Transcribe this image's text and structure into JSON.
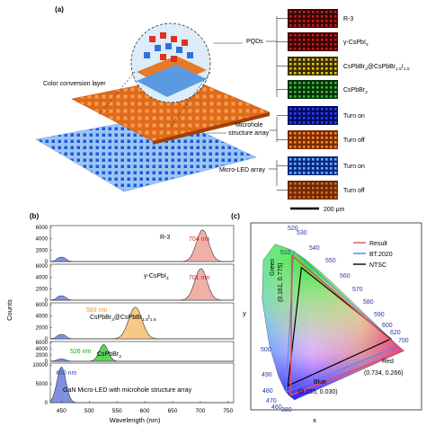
{
  "panel_a": {
    "label": "(a)",
    "labels": {
      "color_conversion_layer": "Color conversion layer",
      "pqds": "PQDs",
      "microhole_1": "Microhole",
      "microhole_2": "structure array",
      "micro_led": "Micro-LED array"
    },
    "swatches": [
      {
        "label": "R-3",
        "color": "#c0201c",
        "bg": "#3a0606"
      },
      {
        "label": "γ-CsPbI",
        "sub": "3",
        "color": "#c81a14",
        "bg": "#3a0404"
      },
      {
        "label": "CsPbBr",
        "sub": "3",
        "after": "@CsPbBr",
        "sub2": "1.5",
        "after2": "I",
        "sub3": "1.5",
        "color": "#e0c020",
        "bg": "#3a2e04"
      },
      {
        "label": "CsPbBr",
        "sub": "3",
        "color": "#3db83a",
        "bg": "#06300a"
      },
      {
        "label": "Turn on",
        "color": "#2a40ff",
        "bg": "#050a60"
      },
      {
        "label": "Turn off",
        "color": "#ff8a2a",
        "bg": "#7a2c04"
      },
      {
        "label": "Turn on",
        "color": "#6ab0ff",
        "bg": "#0a2a80"
      },
      {
        "label": "Turn off",
        "color": "#d86a1a",
        "bg": "#6a2a06"
      }
    ],
    "scalebar": "200 μm"
  },
  "panel_b": {
    "label": "(b)",
    "ylabel": "Counts",
    "xlabel": "Wavelength (nm)",
    "xticks": [
      "450",
      "500",
      "550",
      "600",
      "650",
      "700",
      "750"
    ],
    "rows": [
      {
        "label": "R-3",
        "peak_label": "704 nm",
        "peak_color": "#e02020",
        "fill": "#f0b0a8",
        "main_peak": 704,
        "ticks": [
          "0",
          "2000",
          "4000",
          "6000"
        ]
      },
      {
        "label": "γ-CsPbI",
        "sub": "3",
        "peak_label": "701 nm",
        "peak_color": "#e02020",
        "fill": "#f0b0a8",
        "main_peak": 701,
        "ticks": [
          "0",
          "2000",
          "4000",
          "6000"
        ]
      },
      {
        "label": "CsPbBr",
        "sub": "3",
        "after": "@CsPbBr",
        "sub2": "1.5",
        "after2": "I",
        "sub3": "1.5",
        "peak_label": "583 nm",
        "peak_color": "#f09020",
        "fill": "#f8c888",
        "main_peak": 583,
        "ticks": [
          "0",
          "2000",
          "4000",
          "6000"
        ]
      },
      {
        "label": "CsPbBr",
        "sub": "3",
        "peak_label": "526 nm",
        "peak_color": "#20a020",
        "fill": "#60d060",
        "main_peak": 526,
        "ticks": [
          "0",
          "2000",
          "4000",
          "6000"
        ]
      },
      {
        "label": "GaN Micro-LED with microhole structure array",
        "peak_label": "450 nm",
        "peak_color": "#3040c0",
        "fill": "#8090e0",
        "main_peak": 450,
        "ticks": [
          "0",
          "5000",
          "10000"
        ]
      }
    ]
  },
  "panel_c": {
    "label": "(c)",
    "xlabel": "x",
    "ylabel": "y",
    "legend": [
      {
        "label": "Result",
        "color": "#e05060"
      },
      {
        "label": "BT.2020",
        "color": "#4090e0"
      },
      {
        "label": "NTSC",
        "color": "#000000"
      }
    ],
    "wavelength_labels": [
      "520",
      "530",
      "540",
      "510",
      "550",
      "560",
      "570",
      "580",
      "590",
      "600",
      "620",
      "700",
      "500",
      "490",
      "480",
      "470",
      "460",
      "380"
    ],
    "points": {
      "green": "Green",
      "green_coord": "(0.161, 0.775)",
      "red": "Red",
      "red_coord": "(0.734, 0.266)",
      "blue": "Blue",
      "blue_coord": "(0.155, 0.030)"
    },
    "result_gamut": [
      [
        0.161,
        0.775
      ],
      [
        0.734,
        0.266
      ],
      [
        0.155,
        0.03
      ]
    ],
    "bt2020_gamut": [
      [
        0.17,
        0.797
      ],
      [
        0.708,
        0.292
      ],
      [
        0.131,
        0.046
      ]
    ],
    "ntsc_gamut": [
      [
        0.21,
        0.71
      ],
      [
        0.67,
        0.33
      ],
      [
        0.14,
        0.08
      ]
    ]
  }
}
